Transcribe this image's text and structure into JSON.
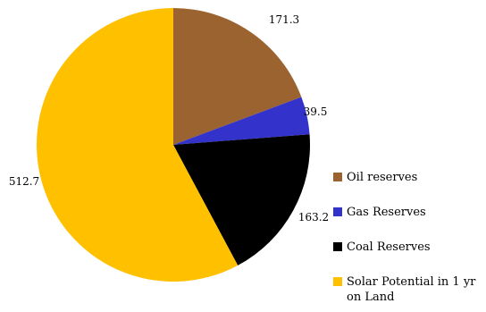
{
  "chart_data": {
    "type": "pie",
    "categories": [
      "Oil reserves",
      "Gas Reserves",
      "Coal Reserves",
      "Solar Potential in 1 yr on Land"
    ],
    "values": [
      171.3,
      39.5,
      163.2,
      512.7
    ],
    "value_labels": [
      "171.3",
      "39.5",
      "163.2",
      "512.7"
    ],
    "colors": [
      "#9b6330",
      "#3333cc",
      "#000000",
      "#ffc000"
    ],
    "legend": {
      "placement": "right",
      "entries": [
        {
          "lines": [
            "Oil reserves"
          ]
        },
        {
          "lines": [
            "Gas Reserves"
          ]
        },
        {
          "lines": [
            "Coal Reserves"
          ]
        },
        {
          "lines": [
            "Solar Potential in 1 yr",
            "on Land"
          ]
        }
      ]
    },
    "start": "12 o'clock",
    "direction": "clockwise"
  }
}
